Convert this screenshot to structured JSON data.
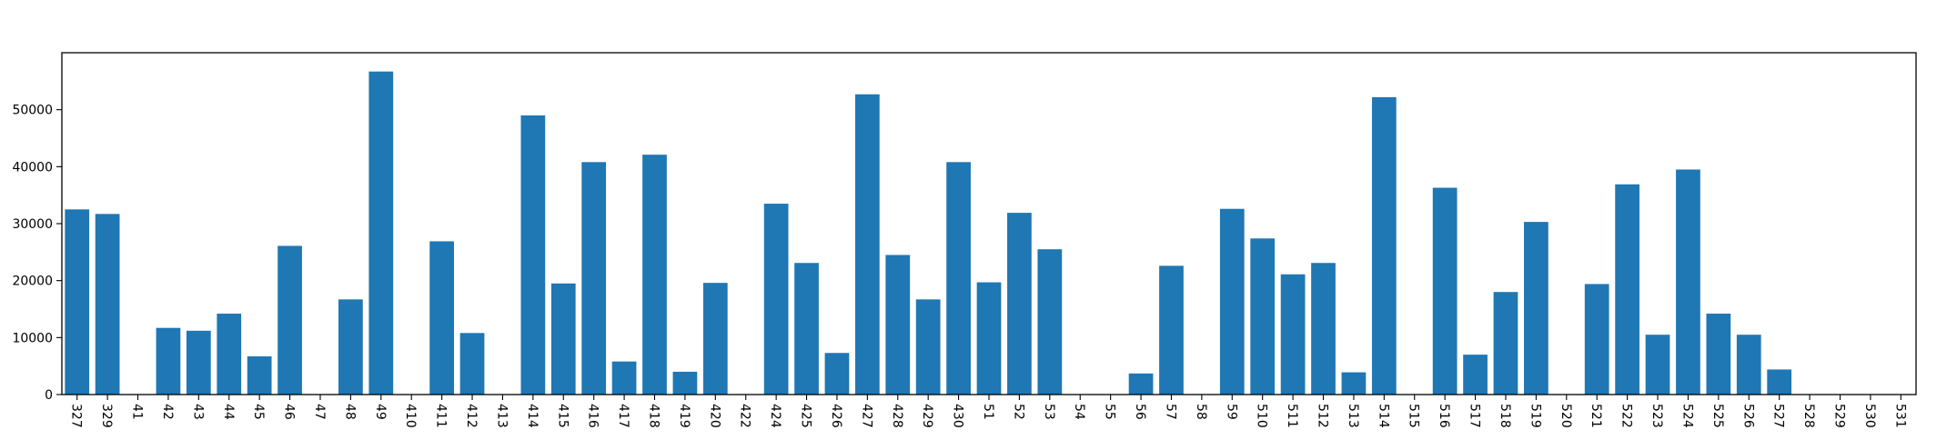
{
  "chart_data": {
    "type": "bar",
    "title": "",
    "xlabel": "",
    "ylabel": "",
    "ylim": [
      0,
      60000
    ],
    "yticks": [
      0,
      10000,
      20000,
      30000,
      40000,
      50000
    ],
    "grid": false,
    "bar_color": "#1f77b4",
    "categories": [
      "327",
      "329",
      "41",
      "42",
      "43",
      "44",
      "45",
      "46",
      "47",
      "48",
      "49",
      "410",
      "411",
      "412",
      "413",
      "414",
      "415",
      "416",
      "417",
      "418",
      "419",
      "420",
      "422",
      "424",
      "425",
      "426",
      "427",
      "428",
      "429",
      "430",
      "51",
      "52",
      "53",
      "54",
      "55",
      "56",
      "57",
      "58",
      "59",
      "510",
      "511",
      "512",
      "513",
      "514",
      "515",
      "516",
      "517",
      "518",
      "519",
      "520",
      "521",
      "522",
      "523",
      "524",
      "525",
      "526",
      "527",
      "528",
      "529",
      "530",
      "531"
    ],
    "values": [
      32500,
      31700,
      0,
      11700,
      11200,
      14200,
      6700,
      26100,
      0,
      16700,
      56700,
      0,
      26900,
      10800,
      0,
      49000,
      19500,
      40800,
      5800,
      42100,
      4000,
      19600,
      0,
      33500,
      23100,
      7300,
      52700,
      24500,
      16700,
      40800,
      19700,
      31900,
      25500,
      0,
      0,
      3700,
      22600,
      0,
      32600,
      27400,
      21100,
      23100,
      3900,
      52200,
      0,
      36300,
      7000,
      18000,
      30300,
      0,
      19400,
      36900,
      10500,
      39500,
      14200,
      10500,
      4400,
      0,
      0,
      0,
      0
    ]
  }
}
